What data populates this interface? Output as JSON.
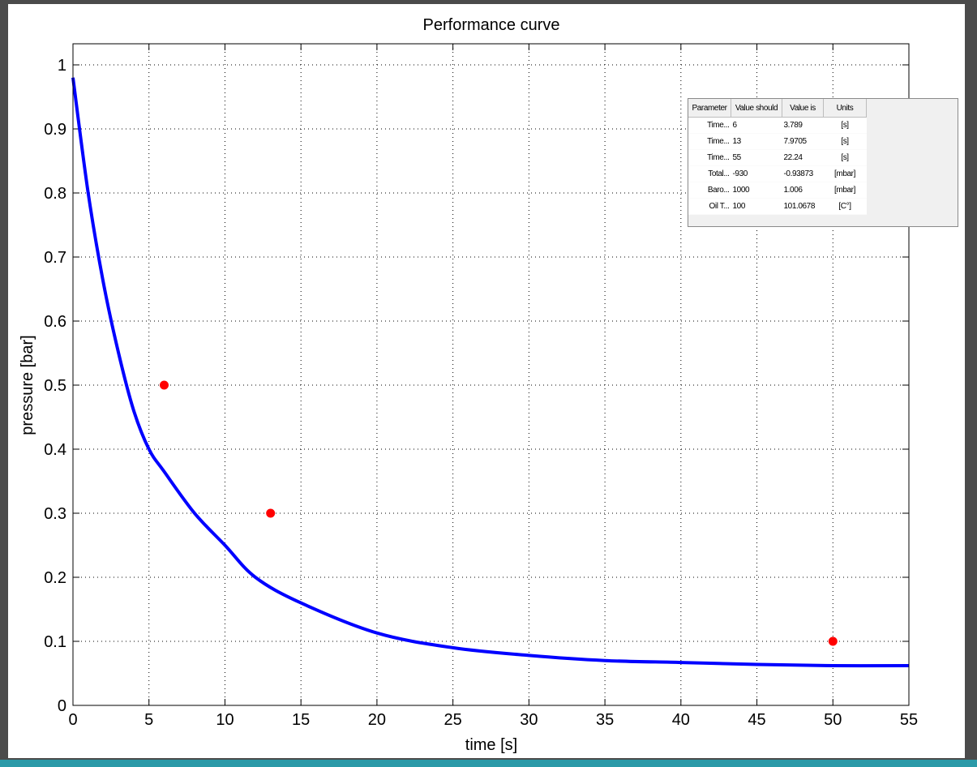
{
  "chart_data": {
    "type": "line",
    "title": "Performance curve",
    "xlabel": "time [s]",
    "ylabel": "pressure [bar]",
    "xlim": [
      0,
      55
    ],
    "ylim": [
      0,
      1
    ],
    "xticks": [
      0,
      5,
      10,
      15,
      20,
      25,
      30,
      35,
      40,
      45,
      50,
      55
    ],
    "yticks": [
      0,
      0.1,
      0.2,
      0.3,
      0.4,
      0.5,
      0.6,
      0.7,
      0.8,
      0.9,
      1
    ],
    "grid": true,
    "series": [
      {
        "kind": "line",
        "color": "#0000ff",
        "x": [
          0,
          1,
          2,
          3,
          4,
          5,
          6,
          8,
          10,
          12,
          15,
          20,
          25,
          30,
          35,
          40,
          45,
          50,
          55
        ],
        "y": [
          0.98,
          0.8,
          0.66,
          0.55,
          0.46,
          0.4,
          0.365,
          0.3,
          0.25,
          0.2,
          0.16,
          0.113,
          0.09,
          0.078,
          0.07,
          0.067,
          0.064,
          0.062,
          0.062
        ]
      },
      {
        "kind": "scatter",
        "color": "#ff0000",
        "x": [
          6,
          13,
          50
        ],
        "y": [
          0.5,
          0.3,
          0.1
        ]
      }
    ]
  },
  "table": {
    "headers": [
      "Parameter",
      "Value should",
      "Value is",
      "Units"
    ],
    "rows": [
      [
        "Time...",
        "6",
        "3.789",
        "[s]"
      ],
      [
        "Time...",
        "13",
        "7.9705",
        "[s]"
      ],
      [
        "Time...",
        "55",
        "22.24",
        "[s]"
      ],
      [
        "Total...",
        "-930",
        "-0.93873",
        "[mbar]"
      ],
      [
        "Baro...",
        "1000",
        "1.006",
        "[mbar]"
      ],
      [
        "Oil T...",
        "100",
        "101.0678",
        "[C°]"
      ]
    ]
  }
}
